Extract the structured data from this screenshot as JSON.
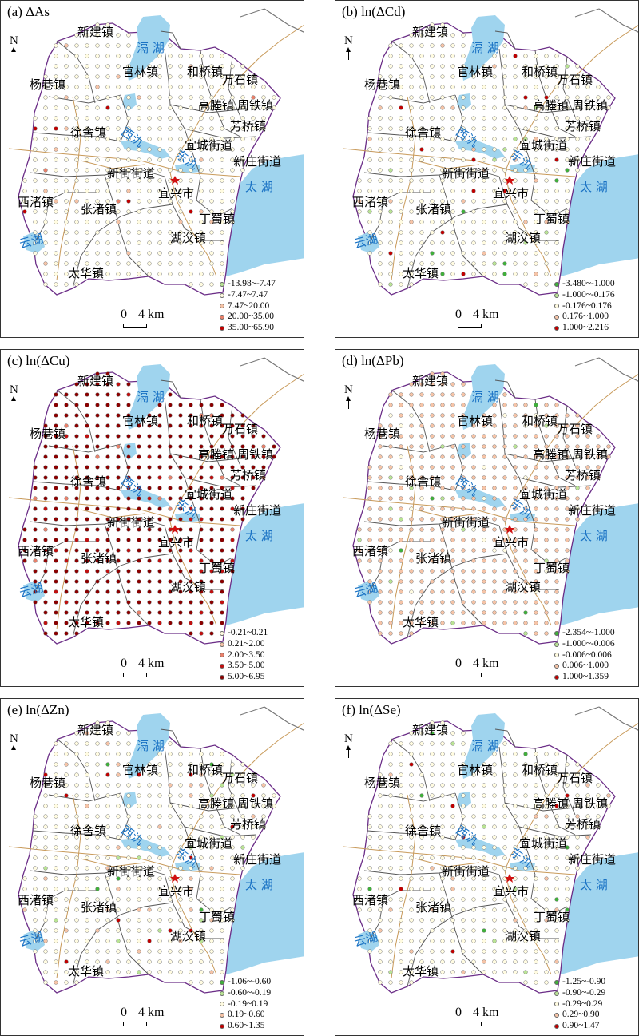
{
  "panels": [
    {
      "title": "(a) ΔAs",
      "legend": [
        "-13.98~-7.47",
        "-7.47~7.47",
        "7.47~20.00",
        "20.00~35.00",
        "35.00~65.90"
      ],
      "legend_colors": [
        "#b9e394",
        "#fffbe0",
        "#f5c3a6",
        "#e8806a",
        "#c00000"
      ],
      "dominant_class": 1,
      "pattern": "sparse"
    },
    {
      "title": "ln(ΔCd)",
      "title_prefix": "(b) ",
      "legend": [
        "-3.480~-1.000",
        "-1.000~-0.176",
        "-0.176~0.176",
        "0.176~1.000",
        "1.000~2.216"
      ],
      "legend_colors": [
        "#3fb03a",
        "#b9e394",
        "#fffbe0",
        "#f5c3a6",
        "#c00000"
      ],
      "dominant_class": 2,
      "pattern": "sparse"
    },
    {
      "title": "ln(ΔCu)",
      "title_prefix": "(c) ",
      "legend": [
        "-0.21~0.21",
        "0.21~2.00",
        "2.00~3.50",
        "3.50~5.00",
        "5.00~6.95"
      ],
      "legend_colors": [
        "#fffbe0",
        "#f5c3a6",
        "#e8806a",
        "#c01010",
        "#8b0000"
      ],
      "dominant_class": 4,
      "pattern": "dense"
    },
    {
      "title": "ln(ΔPb)",
      "title_prefix": "(d) ",
      "legend": [
        "-2.354~-1.000",
        "-1.000~-0.006",
        "-0.006~0.006",
        "0.006~1.000",
        "1.000~1.359"
      ],
      "legend_colors": [
        "#3fb03a",
        "#b9e394",
        "#fffbe0",
        "#f5c3a6",
        "#c00000"
      ],
      "dominant_class": 3,
      "pattern": "sparse"
    },
    {
      "title": "ln(ΔZn)",
      "title_prefix": "(e) ",
      "legend": [
        "-1.06~-0.60",
        "-0.60~-0.19",
        "-0.19~0.19",
        "0.19~0.60",
        "0.60~1.35"
      ],
      "legend_colors": [
        "#3fb03a",
        "#b9e394",
        "#fffbe0",
        "#f5c3a6",
        "#c00000"
      ],
      "dominant_class": 2,
      "pattern": "sparse"
    },
    {
      "title": "ln(ΔSe)",
      "title_prefix": "(f) ",
      "legend": [
        "-1.25~-0.90",
        "-0.90~-0.29",
        "-0.29~0.29",
        "0.29~0.90",
        "0.90~1.47"
      ],
      "legend_colors": [
        "#3fb03a",
        "#b9e394",
        "#fffbe0",
        "#f5c3a6",
        "#c00000"
      ],
      "dominant_class": 2,
      "pattern": "sparse"
    }
  ],
  "north_label": "N",
  "scale": {
    "zero": "0",
    "label": "4 km"
  },
  "places": [
    "新建镇",
    "官林镇",
    "和桥镇",
    "杨巷镇",
    "万石镇",
    "高塍镇",
    "周铁镇",
    "芳桥镇",
    "徐舍镇",
    "宜城街道",
    "新庄街道",
    "新街街道",
    "宜兴市",
    "西渚镇",
    "张渚镇",
    "丁蜀镇",
    "湖㳇镇",
    "太华镇"
  ],
  "waters": [
    "滆湖",
    "西氿",
    "东氿",
    "太湖",
    "云湖"
  ],
  "colors": {
    "lake": "#9fd4ee",
    "boundary": "#6b2d87",
    "town_border": "#555555",
    "road": "#c89a5a"
  }
}
